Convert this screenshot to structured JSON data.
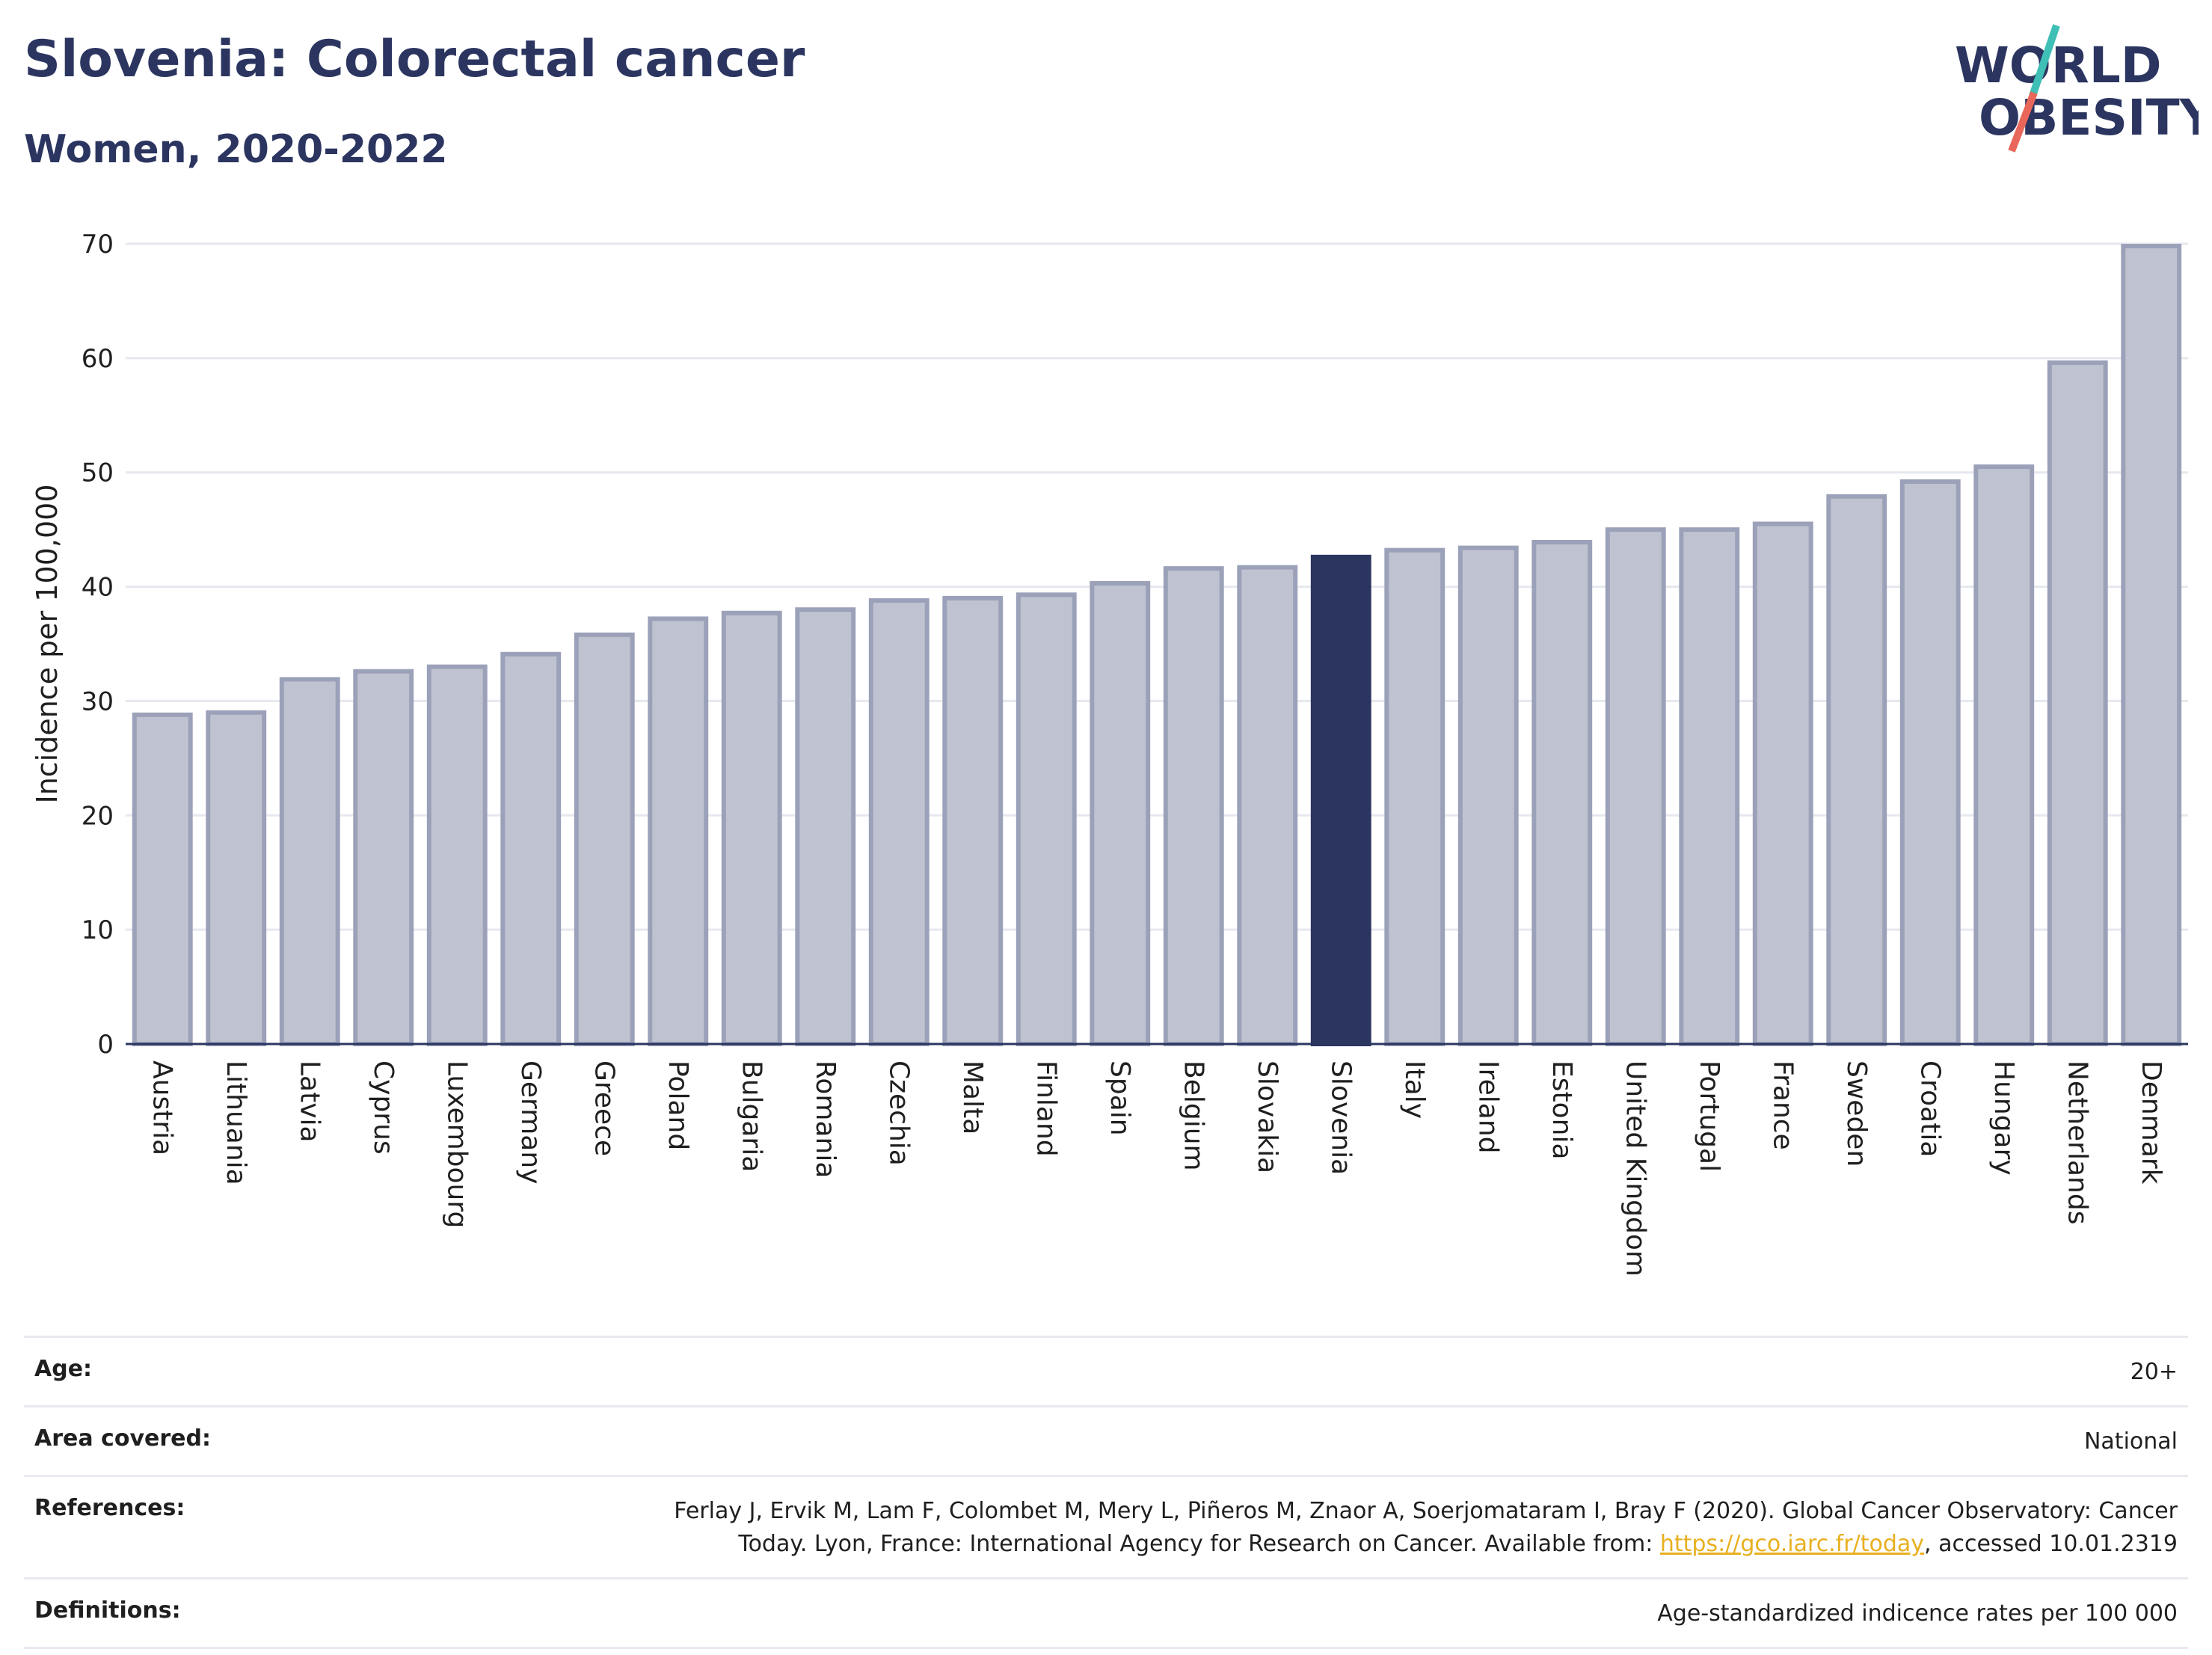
{
  "header": {
    "title": "Slovenia: Colorectal cancer",
    "subtitle": "Women, 2020-2022"
  },
  "logo": {
    "line1": "WORLD",
    "line2": "OBESITY",
    "accent_teal": "#3fbfb5",
    "accent_red": "#e8675a"
  },
  "colors": {
    "bar": "#bfc3d1",
    "bar_border": "#9ba1b8",
    "highlight": "#2b3560",
    "text": "#2b3560",
    "grid": "#e6e8ef"
  },
  "chart_data": {
    "type": "bar",
    "title": "Slovenia: Colorectal cancer",
    "subtitle": "Women, 2020-2022",
    "ylabel": "Incidence per 100,000",
    "xlabel": "",
    "ylim": [
      0,
      70
    ],
    "yticks": [
      0,
      10,
      20,
      30,
      40,
      50,
      60,
      70
    ],
    "grid": true,
    "highlight": "Slovenia",
    "categories": [
      "Austria",
      "Lithuania",
      "Latvia",
      "Cyprus",
      "Luxembourg",
      "Germany",
      "Greece",
      "Poland",
      "Bulgaria",
      "Romania",
      "Czechia",
      "Malta",
      "Finland",
      "Spain",
      "Belgium",
      "Slovakia",
      "Slovenia",
      "Italy",
      "Ireland",
      "Estonia",
      "United Kingdom",
      "Portugal",
      "France",
      "Sweden",
      "Croatia",
      "Hungary",
      "Netherlands",
      "Denmark"
    ],
    "values": [
      28.8,
      29.0,
      31.9,
      32.6,
      33.0,
      34.1,
      35.8,
      37.2,
      37.7,
      38.0,
      38.8,
      39.0,
      39.3,
      40.3,
      41.6,
      41.7,
      42.6,
      43.2,
      43.4,
      43.9,
      45.0,
      45.0,
      45.5,
      47.9,
      49.2,
      50.5,
      59.6,
      69.8
    ]
  },
  "meta": {
    "age": {
      "label": "Age:",
      "value": "20+"
    },
    "area": {
      "label": "Area covered:",
      "value": "National"
    },
    "references": {
      "label": "References:",
      "line1": "Ferlay J, Ervik M, Lam F, Colombet M, Mery L, Piñeros M, Znaor A, Soerjomataram I, Bray F (2020). Global Cancer Observatory: Cancer",
      "line2_pre": "Today. Lyon, France: International Agency for Research on Cancer. Available from: ",
      "link": "https://gco.iarc.fr/today",
      "line2_post": ", accessed 10.01.2319"
    },
    "definitions": {
      "label": "Definitions:",
      "value": "Age-standardized indicence rates per 100 000"
    }
  }
}
